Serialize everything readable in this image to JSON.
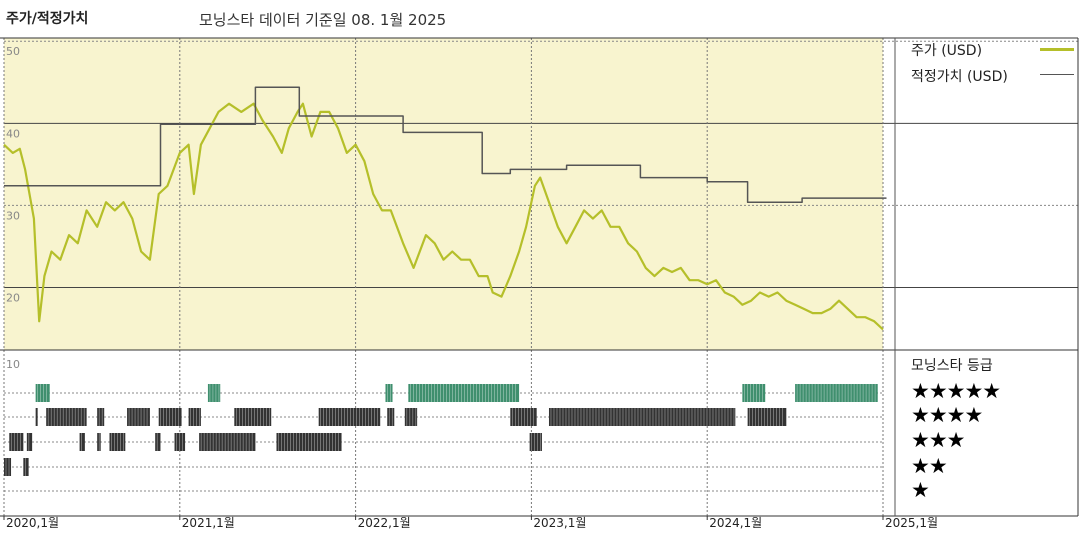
{
  "header": {
    "title": "주가/적정가치",
    "subtitle": "모닝스타 데이터 기준일 08. 1월 2025"
  },
  "legend": {
    "items": [
      {
        "label": "주가 (USD)",
        "color": "#b5bf2a"
      },
      {
        "label": "적정가치 (USD)",
        "color": "#555555"
      }
    ]
  },
  "rating_panel": {
    "title": "모닝스타 등급",
    "rows": [
      {
        "stars": 5,
        "label": "★★★★★"
      },
      {
        "stars": 4,
        "label": "★★★★"
      },
      {
        "stars": 3,
        "label": "★★★"
      },
      {
        "stars": 2,
        "label": "★★"
      },
      {
        "stars": 1,
        "label": "★"
      }
    ]
  },
  "colors": {
    "plot_bg": "#f8f4cf",
    "price_line": "#b5bf2a",
    "fair_value_line": "#555555",
    "five_star": "#3f8f6e",
    "other_star": "#333333"
  },
  "chart_data": {
    "type": "line",
    "x_ticks": [
      "2020,1월",
      "2021,1월",
      "2022,1월",
      "2023,1월",
      "2024,1월",
      "2025,1월"
    ],
    "y_ticks": [
      "50",
      "40",
      "30",
      "20"
    ],
    "rating_axis_tick": "10",
    "ylim": [
      13,
      51
    ],
    "xlim": [
      2020.0,
      2025.0
    ],
    "grid": true,
    "legend_position": "right",
    "series": [
      {
        "name": "주가 (USD)",
        "points": [
          [
            2020.0,
            38
          ],
          [
            2020.05,
            37
          ],
          [
            2020.09,
            37.5
          ],
          [
            2020.12,
            35
          ],
          [
            2020.17,
            29
          ],
          [
            2020.2,
            16.5
          ],
          [
            2020.23,
            22
          ],
          [
            2020.27,
            25
          ],
          [
            2020.32,
            24
          ],
          [
            2020.37,
            27
          ],
          [
            2020.42,
            26
          ],
          [
            2020.47,
            30
          ],
          [
            2020.53,
            28
          ],
          [
            2020.58,
            31
          ],
          [
            2020.63,
            30
          ],
          [
            2020.68,
            31
          ],
          [
            2020.73,
            29
          ],
          [
            2020.78,
            25
          ],
          [
            2020.83,
            24
          ],
          [
            2020.88,
            32
          ],
          [
            2020.93,
            33
          ],
          [
            2021.0,
            37
          ],
          [
            2021.05,
            38
          ],
          [
            2021.08,
            32
          ],
          [
            2021.12,
            38
          ],
          [
            2021.17,
            40
          ],
          [
            2021.22,
            42
          ],
          [
            2021.28,
            43
          ],
          [
            2021.35,
            42
          ],
          [
            2021.42,
            43
          ],
          [
            2021.47,
            41
          ],
          [
            2021.53,
            39
          ],
          [
            2021.58,
            37
          ],
          [
            2021.62,
            40
          ],
          [
            2021.67,
            42
          ],
          [
            2021.7,
            43
          ],
          [
            2021.75,
            39
          ],
          [
            2021.8,
            42
          ],
          [
            2021.85,
            42
          ],
          [
            2021.9,
            40
          ],
          [
            2021.95,
            37
          ],
          [
            2022.0,
            38
          ],
          [
            2022.05,
            36
          ],
          [
            2022.1,
            32
          ],
          [
            2022.15,
            30
          ],
          [
            2022.2,
            30
          ],
          [
            2022.27,
            26
          ],
          [
            2022.33,
            23
          ],
          [
            2022.4,
            27
          ],
          [
            2022.45,
            26
          ],
          [
            2022.5,
            24
          ],
          [
            2022.55,
            25
          ],
          [
            2022.6,
            24
          ],
          [
            2022.65,
            24
          ],
          [
            2022.7,
            22
          ],
          [
            2022.75,
            22
          ],
          [
            2022.78,
            20
          ],
          [
            2022.83,
            19.5
          ],
          [
            2022.88,
            22
          ],
          [
            2022.93,
            25
          ],
          [
            2022.97,
            28
          ],
          [
            2023.02,
            33
          ],
          [
            2023.05,
            34
          ],
          [
            2023.1,
            31
          ],
          [
            2023.15,
            28
          ],
          [
            2023.2,
            26
          ],
          [
            2023.25,
            28
          ],
          [
            2023.3,
            30
          ],
          [
            2023.35,
            29
          ],
          [
            2023.4,
            30
          ],
          [
            2023.45,
            28
          ],
          [
            2023.5,
            28
          ],
          [
            2023.55,
            26
          ],
          [
            2023.6,
            25
          ],
          [
            2023.65,
            23
          ],
          [
            2023.7,
            22
          ],
          [
            2023.75,
            23
          ],
          [
            2023.8,
            22.5
          ],
          [
            2023.85,
            23
          ],
          [
            2023.9,
            21.5
          ],
          [
            2023.95,
            21.5
          ],
          [
            2024.0,
            21
          ],
          [
            2024.05,
            21.5
          ],
          [
            2024.1,
            20
          ],
          [
            2024.15,
            19.5
          ],
          [
            2024.2,
            18.5
          ],
          [
            2024.25,
            19
          ],
          [
            2024.3,
            20
          ],
          [
            2024.35,
            19.5
          ],
          [
            2024.4,
            20
          ],
          [
            2024.45,
            19
          ],
          [
            2024.5,
            18.5
          ],
          [
            2024.55,
            18
          ],
          [
            2024.6,
            17.5
          ],
          [
            2024.65,
            17.5
          ],
          [
            2024.7,
            18
          ],
          [
            2024.75,
            19
          ],
          [
            2024.8,
            18
          ],
          [
            2024.85,
            17
          ],
          [
            2024.9,
            17
          ],
          [
            2024.95,
            16.5
          ],
          [
            2025.0,
            15.5
          ]
        ]
      },
      {
        "name": "적정가치 (USD)",
        "points": [
          [
            2020.0,
            33
          ],
          [
            2020.89,
            33
          ],
          [
            2020.89,
            40.5
          ],
          [
            2021.43,
            40.5
          ],
          [
            2021.43,
            45
          ],
          [
            2021.68,
            45
          ],
          [
            2021.68,
            41.5
          ],
          [
            2022.27,
            41.5
          ],
          [
            2022.27,
            39.5
          ],
          [
            2022.72,
            39.5
          ],
          [
            2022.72,
            34.5
          ],
          [
            2022.88,
            34.5
          ],
          [
            2022.88,
            35
          ],
          [
            2023.2,
            35
          ],
          [
            2023.2,
            35.5
          ],
          [
            2023.62,
            35.5
          ],
          [
            2023.62,
            34
          ],
          [
            2024.0,
            34
          ],
          [
            2024.0,
            33.5
          ],
          [
            2024.23,
            33.5
          ],
          [
            2024.23,
            31
          ],
          [
            2024.54,
            31
          ],
          [
            2024.54,
            31.5
          ],
          [
            2025.02,
            31.5
          ]
        ]
      }
    ],
    "rating_history": [
      {
        "stars": 5,
        "ranges": [
          [
            2020.18,
            2020.26
          ],
          [
            2021.16,
            2021.23
          ],
          [
            2022.17,
            2022.21
          ],
          [
            2022.3,
            2022.93
          ],
          [
            2024.2,
            2024.33
          ],
          [
            2024.5,
            2024.97
          ]
        ]
      },
      {
        "stars": 4,
        "ranges": [
          [
            2020.18,
            2020.19
          ],
          [
            2020.24,
            2020.47
          ],
          [
            2020.53,
            2020.57
          ],
          [
            2020.7,
            2020.83
          ],
          [
            2020.88,
            2021.01
          ],
          [
            2021.05,
            2021.12
          ],
          [
            2021.31,
            2021.52
          ],
          [
            2021.79,
            2022.14
          ],
          [
            2022.18,
            2022.22
          ],
          [
            2022.28,
            2022.35
          ],
          [
            2022.88,
            2023.03
          ],
          [
            2023.1,
            2024.16
          ],
          [
            2024.23,
            2024.45
          ]
        ]
      },
      {
        "stars": 3,
        "ranges": [
          [
            2020.03,
            2020.11
          ],
          [
            2020.13,
            2020.16
          ],
          [
            2020.43,
            2020.46
          ],
          [
            2020.53,
            2020.55
          ],
          [
            2020.6,
            2020.69
          ],
          [
            2020.86,
            2020.89
          ],
          [
            2020.97,
            2021.03
          ],
          [
            2021.11,
            2021.43
          ],
          [
            2021.55,
            2021.92
          ],
          [
            2022.99,
            2023.06
          ]
        ]
      },
      {
        "stars": 2,
        "ranges": [
          [
            2020.0,
            2020.04
          ],
          [
            2020.11,
            2020.14
          ]
        ]
      },
      {
        "stars": 1,
        "ranges": []
      }
    ]
  }
}
